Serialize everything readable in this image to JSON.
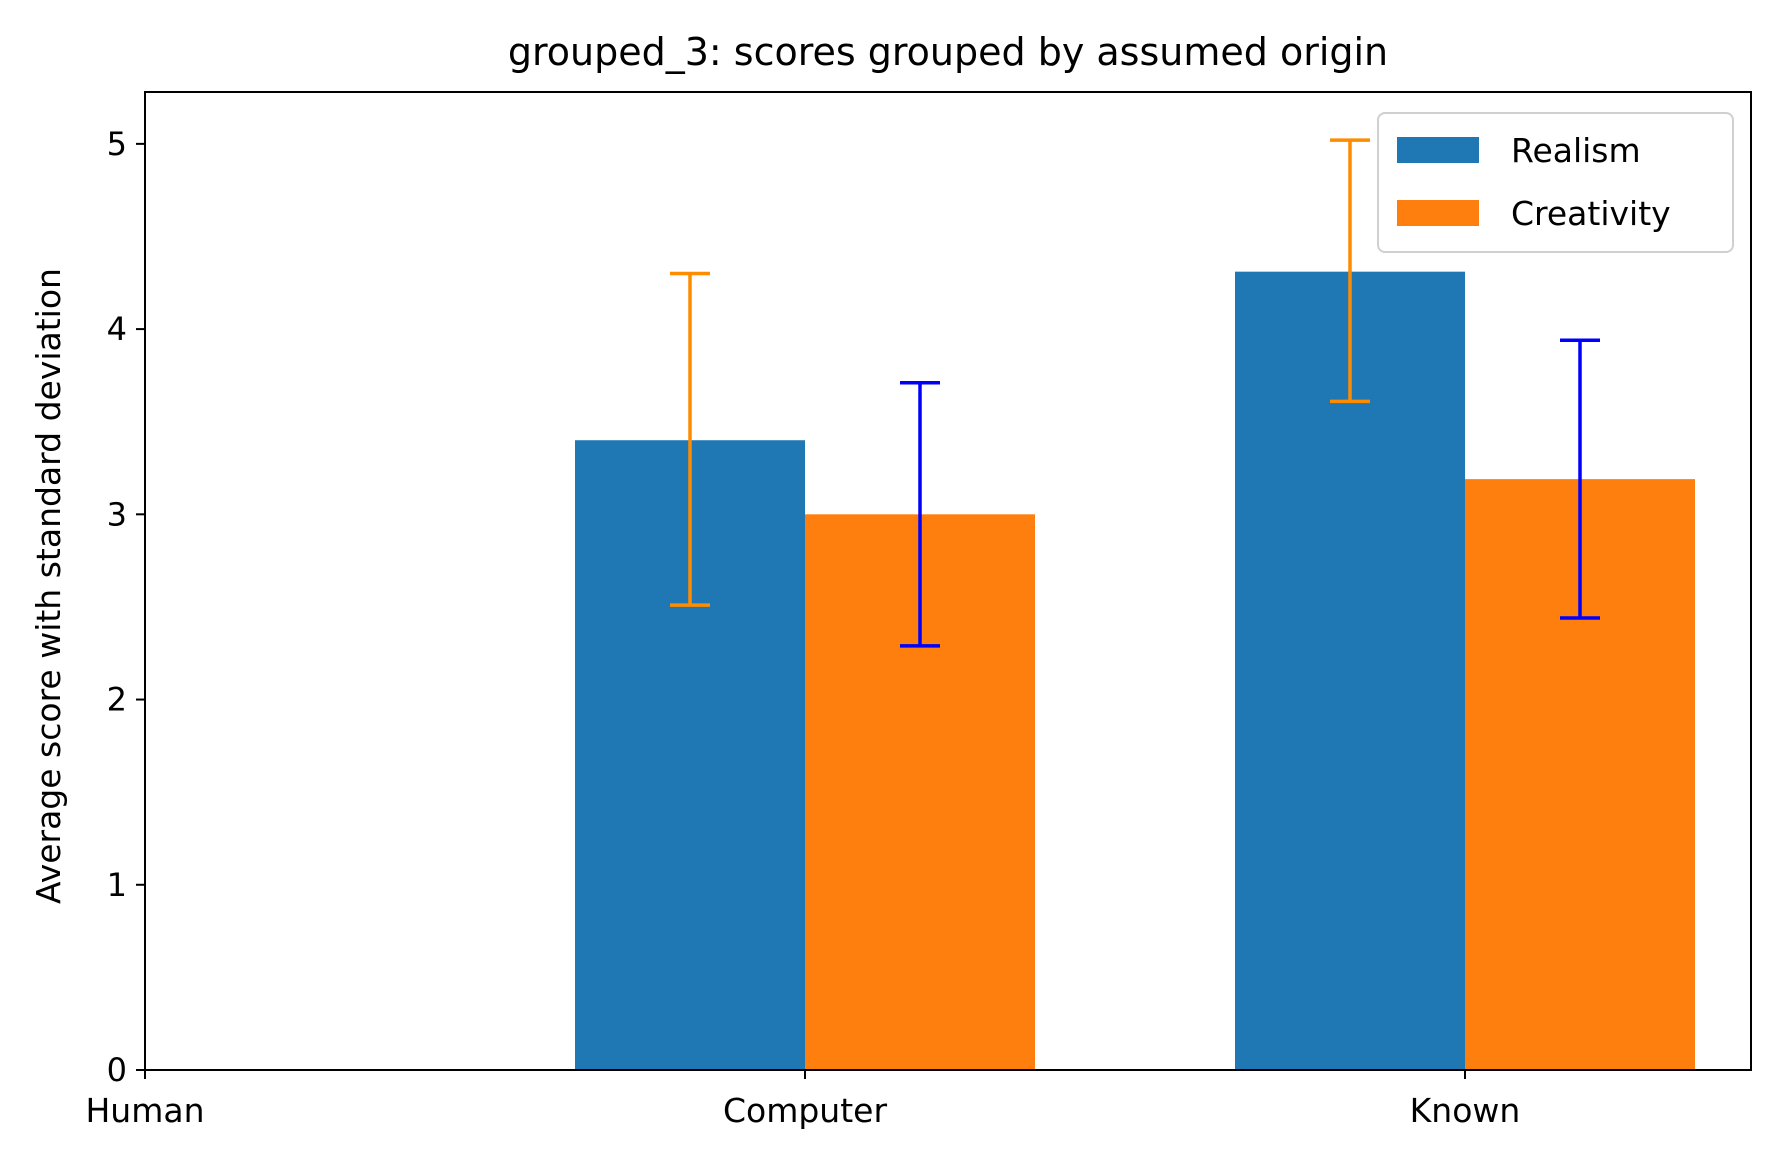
{
  "chart_data": {
    "type": "bar",
    "title": "grouped_3: scores grouped by assumed origin",
    "xlabel": "",
    "ylabel": "Average score with standard deviation",
    "categories": [
      "Human",
      "Computer",
      "Known"
    ],
    "ylim": [
      0,
      5.28
    ],
    "yticks": [
      0,
      1,
      2,
      3,
      4,
      5
    ],
    "grid": false,
    "legend_position": "top-right",
    "series": [
      {
        "name": "Realism",
        "color": "#1f77b4",
        "error_color": "#ff8c00",
        "values": [
          null,
          3.4,
          4.31
        ],
        "lower": [
          null,
          2.51,
          3.61
        ],
        "upper": [
          null,
          4.3,
          5.02
        ]
      },
      {
        "name": "Creativity",
        "color": "#ff7f0e",
        "error_color": "#0000ff",
        "values": [
          null,
          3.0,
          3.19
        ],
        "lower": [
          null,
          2.29,
          2.44
        ],
        "upper": [
          null,
          3.71,
          3.94
        ]
      }
    ]
  }
}
